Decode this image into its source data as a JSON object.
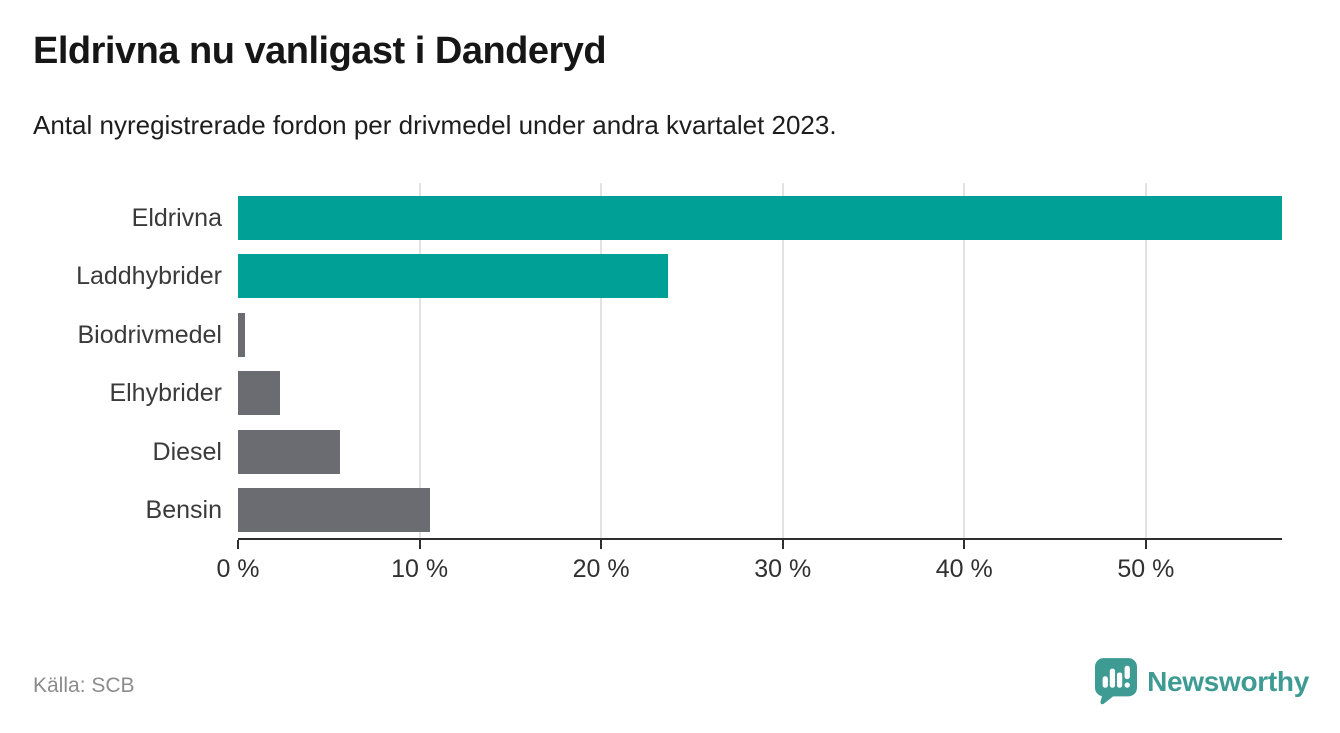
{
  "header": {
    "title": "Eldrivna nu vanligast i Danderyd",
    "subtitle": "Antal nyregistrerade fordon per drivmedel under andra kvartalet 2023."
  },
  "chart_data": {
    "type": "bar",
    "orientation": "horizontal",
    "title": "Eldrivna nu vanligast i Danderyd",
    "subtitle": "Antal nyregistrerade fordon per drivmedel under andra kvartalet 2023.",
    "categories": [
      "Eldrivna",
      "Laddhybrider",
      "Biodrivmedel",
      "Elhybrider",
      "Diesel",
      "Bensin"
    ],
    "values": [
      57.5,
      23.7,
      0.4,
      2.3,
      5.6,
      10.6
    ],
    "unit": "%",
    "bar_colors": [
      "#00a096",
      "#00a096",
      "#6b6b72",
      "#6b6b72",
      "#6b6b72",
      "#6b6b72"
    ],
    "x_ticks": [
      0,
      10,
      20,
      30,
      40,
      50
    ],
    "x_tick_labels": [
      "0 %",
      "10 %",
      "20 %",
      "30 %",
      "40 %",
      "50 %"
    ],
    "xlim": [
      0,
      57.5
    ],
    "grid": true,
    "legend": "none",
    "xlabel": "",
    "ylabel": ""
  },
  "footer": {
    "source": "Källa: SCB",
    "brand": "Newsworthy"
  },
  "colors": {
    "accent_teal": "#00a096",
    "bar_gray": "#6b6b72",
    "brand_teal": "#3d9b94",
    "grid": "#e2e2e2",
    "axis": "#2e2e2e",
    "title_text": "#161616",
    "muted_text": "#8c8c8c"
  }
}
